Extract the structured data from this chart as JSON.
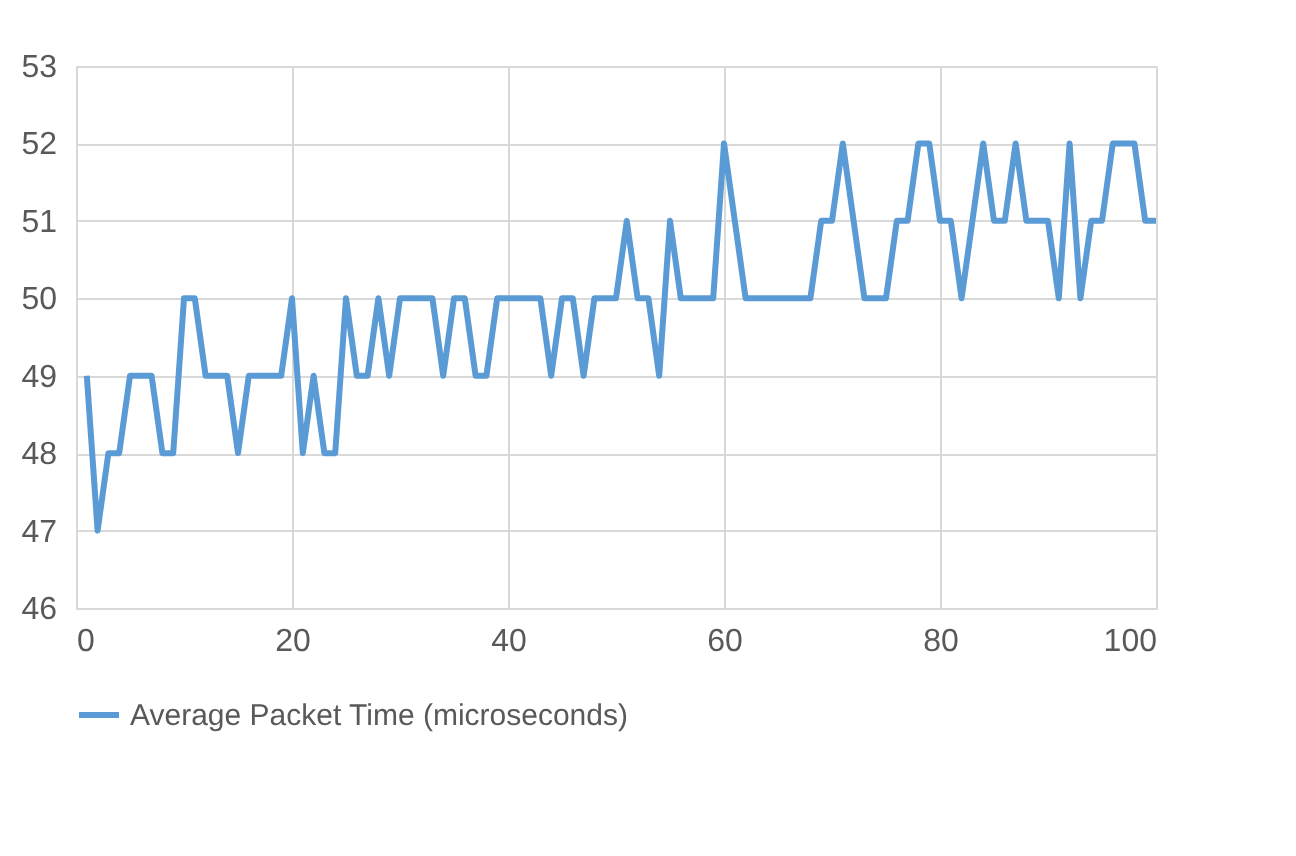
{
  "chart_data": {
    "type": "line",
    "x": [
      1,
      2,
      3,
      4,
      5,
      6,
      7,
      8,
      9,
      10,
      11,
      12,
      13,
      14,
      15,
      16,
      17,
      18,
      19,
      20,
      21,
      22,
      23,
      24,
      25,
      26,
      27,
      28,
      29,
      30,
      31,
      32,
      33,
      34,
      35,
      36,
      37,
      38,
      39,
      40,
      41,
      42,
      43,
      44,
      45,
      46,
      47,
      48,
      49,
      50,
      51,
      52,
      53,
      54,
      55,
      56,
      57,
      58,
      59,
      60,
      61,
      62,
      63,
      64,
      65,
      66,
      67,
      68,
      69,
      70,
      71,
      72,
      73,
      74,
      75,
      76,
      77,
      78,
      79,
      80,
      81,
      82,
      83,
      84,
      85,
      86,
      87,
      88,
      89,
      90,
      91,
      92,
      93,
      94,
      95,
      96,
      97,
      98,
      99,
      100
    ],
    "series": [
      {
        "name": "Average Packet Time (microseconds)",
        "color": "#5b9bd5",
        "values": [
          49,
          47,
          48,
          48,
          49,
          49,
          49,
          48,
          48,
          50,
          50,
          49,
          49,
          49,
          48,
          49,
          49,
          49,
          49,
          50,
          48,
          49,
          48,
          48,
          50,
          49,
          49,
          50,
          49,
          50,
          50,
          50,
          50,
          49,
          50,
          50,
          49,
          49,
          50,
          50,
          50,
          50,
          50,
          49,
          50,
          50,
          49,
          50,
          50,
          50,
          51,
          50,
          50,
          49,
          51,
          50,
          50,
          50,
          50,
          52,
          51,
          50,
          50,
          50,
          50,
          50,
          50,
          50,
          51,
          51,
          52,
          51,
          50,
          50,
          50,
          51,
          51,
          52,
          52,
          51,
          51,
          50,
          51,
          52,
          51,
          51,
          52,
          51,
          51,
          51,
          50,
          52,
          50,
          51,
          51,
          52,
          52,
          52,
          51,
          51
        ]
      }
    ],
    "xlim": [
      0,
      100
    ],
    "xticks": [
      0,
      20,
      40,
      60,
      80,
      100
    ],
    "ylim": [
      46,
      53
    ],
    "yticks": [
      46,
      47,
      48,
      49,
      50,
      51,
      52,
      53
    ],
    "grid": true,
    "legend": "bottom",
    "marker": "none",
    "line_style": "solid"
  }
}
